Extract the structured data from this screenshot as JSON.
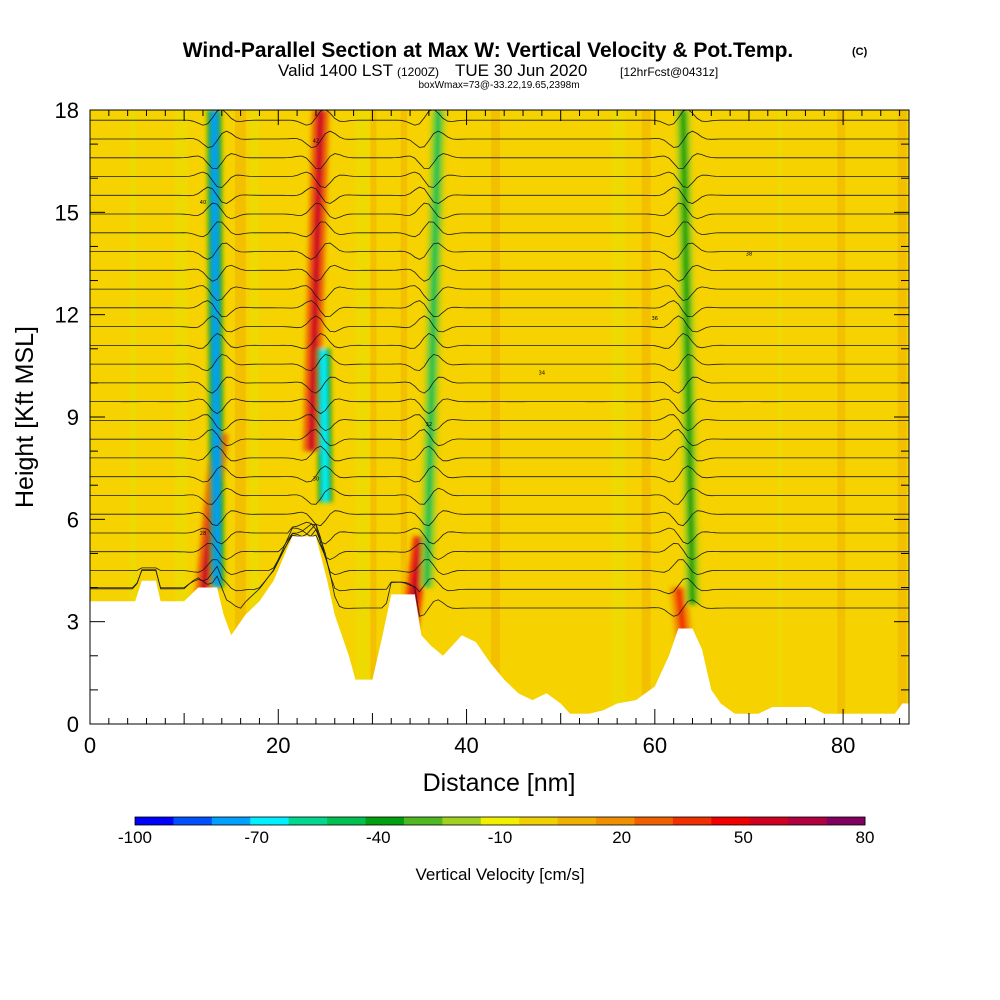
{
  "chart_data": {
    "type": "heatmap",
    "title": "Wind-Parallel Section at Max W: Vertical Velocity & Pot.Temp.",
    "title_mark": "(C)",
    "subtitle_valid": "Valid 1400 LST",
    "subtitle_z": "(1200Z)",
    "subtitle_date": "TUE 30 Jun 2020",
    "subtitle_fcst": "[12hrFcst@0431z]",
    "box_note": "boxWmax=73@-33.22,19.65,2398m",
    "xlabel": "Distance [nm]",
    "ylabel": "Height [Kft MSL]",
    "xlim": [
      0,
      87
    ],
    "ylim": [
      0,
      18
    ],
    "x_ticks": [
      0,
      20,
      40,
      60,
      80
    ],
    "y_ticks": [
      0,
      3,
      6,
      9,
      12,
      15,
      18
    ],
    "x_tick_labels": [
      "0",
      "20",
      "40",
      "60",
      "80"
    ],
    "y_tick_labels": [
      "0",
      "3",
      "6",
      "9",
      "12",
      "15",
      "18"
    ],
    "background_value_cm_s": 5,
    "updraft_bands": [
      {
        "x_bottom": 12.0,
        "x_top": 13.8,
        "y_bottom": 3.7,
        "y_top": 8.5,
        "peak": 55
      },
      {
        "x_bottom": 23.5,
        "x_top": 24.5,
        "y_bottom": 8.0,
        "y_top": 18.0,
        "peak": 55
      },
      {
        "x_bottom": 34.0,
        "x_top": 35.2,
        "y_bottom": 2.8,
        "y_top": 5.5,
        "peak": 60
      },
      {
        "x_bottom": 63.2,
        "x_top": 62.5,
        "y_bottom": 2.2,
        "y_top": 4.0,
        "peak": 35
      }
    ],
    "downdraft_bands": [
      {
        "x_bottom": 13.5,
        "x_top": 13.2,
        "y_bottom": 4.0,
        "y_top": 18.0,
        "peak": -75
      },
      {
        "x_bottom": 25.0,
        "x_top": 24.8,
        "y_bottom": 6.5,
        "y_top": 11.0,
        "peak": -70
      },
      {
        "x_bottom": 35.8,
        "x_top": 37.0,
        "y_bottom": 4.0,
        "y_top": 18.0,
        "peak": -45
      },
      {
        "x_bottom": 64.0,
        "x_top": 63.0,
        "y_bottom": 3.5,
        "y_top": 18.0,
        "peak": -40
      }
    ],
    "terrain_kft": [
      [
        0,
        3.6
      ],
      [
        4.8,
        3.6
      ],
      [
        5.5,
        4.2
      ],
      [
        7.0,
        4.2
      ],
      [
        7.5,
        3.6
      ],
      [
        10.0,
        3.6
      ],
      [
        11.5,
        4.0
      ],
      [
        13.5,
        4.0
      ],
      [
        14.2,
        3.2
      ],
      [
        15.0,
        2.6
      ],
      [
        16.5,
        3.2
      ],
      [
        18.0,
        3.6
      ],
      [
        19.5,
        4.2
      ],
      [
        21.5,
        5.5
      ],
      [
        24.0,
        5.5
      ],
      [
        25.2,
        4.2
      ],
      [
        26.0,
        3.2
      ],
      [
        27.5,
        2.0
      ],
      [
        28.2,
        1.3
      ],
      [
        30.0,
        1.3
      ],
      [
        31.0,
        2.5
      ],
      [
        32.0,
        3.8
      ],
      [
        34.5,
        3.8
      ],
      [
        35.2,
        2.6
      ],
      [
        36.2,
        2.3
      ],
      [
        37.5,
        2.0
      ],
      [
        39.5,
        2.6
      ],
      [
        41.0,
        2.4
      ],
      [
        42.5,
        1.8
      ],
      [
        44.0,
        1.3
      ],
      [
        45.5,
        0.9
      ],
      [
        47.0,
        0.7
      ],
      [
        48.5,
        0.9
      ],
      [
        50.0,
        0.6
      ],
      [
        51.0,
        0.3
      ],
      [
        53.0,
        0.3
      ],
      [
        54.5,
        0.4
      ],
      [
        56.0,
        0.6
      ],
      [
        58.0,
        0.7
      ],
      [
        60.0,
        1.1
      ],
      [
        61.5,
        2.0
      ],
      [
        62.5,
        2.8
      ],
      [
        64.0,
        2.8
      ],
      [
        65.0,
        2.2
      ],
      [
        66.0,
        1.0
      ],
      [
        67.0,
        0.6
      ],
      [
        68.5,
        0.3
      ],
      [
        71.0,
        0.3
      ],
      [
        72.5,
        0.5
      ],
      [
        76.5,
        0.5
      ],
      [
        78.0,
        0.3
      ],
      [
        85.5,
        0.3
      ],
      [
        86.3,
        0.6
      ],
      [
        87.0,
        0.6
      ]
    ],
    "theta_contours_c": [
      {
        "y": 5.6,
        "label": "28"
      },
      {
        "y": 7.2,
        "label": "30"
      },
      {
        "y": 8.8,
        "label": "32"
      },
      {
        "y": 10.3,
        "label": "34"
      },
      {
        "y": 11.9,
        "label": "36"
      },
      {
        "y": 13.8,
        "label": "38"
      },
      {
        "y": 15.3,
        "label": "40"
      },
      {
        "y": 17.1,
        "label": "42"
      }
    ],
    "colorbar": {
      "label": "Vertical Velocity [cm/s]",
      "min": -100,
      "max": 80,
      "ticks": [
        -100,
        -70,
        -40,
        -10,
        20,
        50,
        80
      ],
      "tick_labels": [
        "-100",
        "-70",
        "-40",
        "-10",
        "20",
        "50",
        "80"
      ],
      "colors": [
        "#0000ff",
        "#0050ff",
        "#00a0ff",
        "#00f0ff",
        "#00d890",
        "#00c050",
        "#00a010",
        "#50b820",
        "#a0d020",
        "#f0f000",
        "#f0d000",
        "#f0b000",
        "#f09000",
        "#f06000",
        "#f03000",
        "#f00000",
        "#d00020",
        "#b00040",
        "#800060"
      ]
    }
  }
}
